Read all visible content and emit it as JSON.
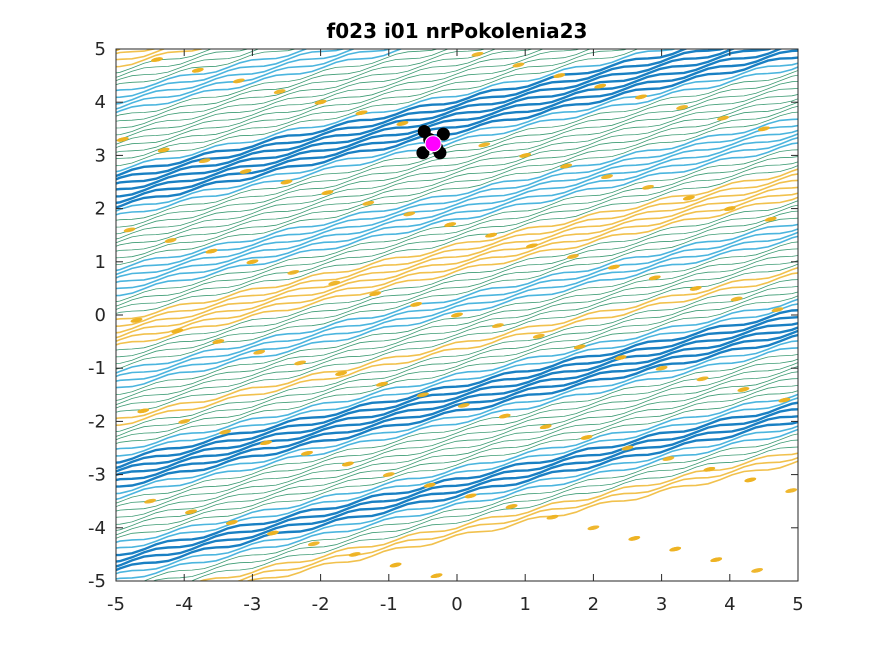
{
  "chart_data": {
    "type": "scatter",
    "title": "f023 i01 nrPokolenia23",
    "xlabel": "",
    "ylabel": "",
    "xlim": [
      -5,
      5
    ],
    "ylim": [
      -5,
      5
    ],
    "x_ticks": [
      "-5",
      "-4",
      "-3",
      "-2",
      "-1",
      "0",
      "1",
      "2",
      "3",
      "4",
      "5"
    ],
    "y_ticks": [
      "-5",
      "-4",
      "-3",
      "-2",
      "-1",
      "0",
      "1",
      "2",
      "3",
      "4",
      "5"
    ],
    "grid": false,
    "legend": "none",
    "background": "contour",
    "contour_colors": [
      "#0072BD",
      "#EDB120",
      "#1a8a5a",
      "#2ca8d8"
    ],
    "series": [
      {
        "marker": "circle",
        "color": "#000000",
        "points": [
          {
            "x": -0.48,
            "y": 3.45
          },
          {
            "x": -0.2,
            "y": 3.4
          },
          {
            "x": -0.5,
            "y": 3.05
          },
          {
            "x": -0.25,
            "y": 3.05
          },
          {
            "x": -0.4,
            "y": 3.3
          },
          {
            "x": -0.3,
            "y": 3.15
          }
        ]
      },
      {
        "marker": "circle",
        "color": "#FF00FF",
        "points": [
          {
            "x": -0.35,
            "y": 3.22
          }
        ]
      }
    ]
  }
}
